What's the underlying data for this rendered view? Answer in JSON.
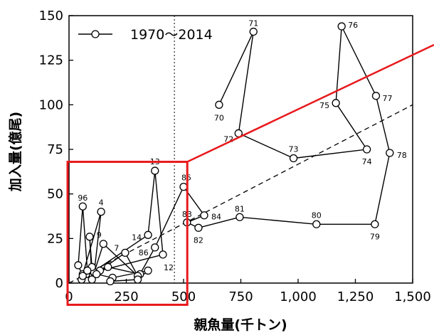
{
  "chart_data": {
    "type": "scatter",
    "xlabel": "親魚量(千トン)",
    "ylabel": "加入量(億尾)",
    "xlim": [
      0,
      1500
    ],
    "ylim": [
      0,
      150
    ],
    "x_ticks": [
      "0",
      "250",
      "500",
      "750",
      "1,000",
      "1,250",
      "1,500"
    ],
    "y_ticks": [
      "0",
      "25",
      "50",
      "75",
      "100",
      "125",
      "150"
    ],
    "x_tick_values": [
      0,
      250,
      500,
      750,
      1000,
      1250,
      1500
    ],
    "y_tick_values": [
      0,
      25,
      50,
      75,
      100,
      125,
      150
    ],
    "legend": {
      "label": "1970〜2014",
      "position": "top-left"
    },
    "series": [
      {
        "name": "1970〜2014",
        "points": [
          {
            "label": "70",
            "x": 655,
            "y": 100
          },
          {
            "label": "71",
            "x": 805,
            "y": 141
          },
          {
            "label": "72",
            "x": 740,
            "y": 84
          },
          {
            "label": "73",
            "x": 980,
            "y": 70
          },
          {
            "label": "74",
            "x": 1300,
            "y": 75
          },
          {
            "label": "75",
            "x": 1165,
            "y": 101
          },
          {
            "label": "76",
            "x": 1190,
            "y": 144
          },
          {
            "label": "77",
            "x": 1340,
            "y": 105
          },
          {
            "label": "78",
            "x": 1400,
            "y": 73
          },
          {
            "label": "79",
            "x": 1335,
            "y": 33
          },
          {
            "label": "80",
            "x": 1080,
            "y": 33
          },
          {
            "label": "81",
            "x": 745,
            "y": 37
          },
          {
            "label": "82",
            "x": 565,
            "y": 31
          },
          {
            "label": "83",
            "x": 515,
            "y": 34
          },
          {
            "label": "84",
            "x": 590,
            "y": 38
          },
          {
            "label": "85",
            "x": 500,
            "y": 54
          },
          {
            "label": "86",
            "x": 375,
            "y": 20
          },
          {
            "label": "",
            "x": 310,
            "y": 5
          },
          {
            "label": "",
            "x": 170,
            "y": 9
          },
          {
            "label": "",
            "x": 135,
            "y": 7
          },
          {
            "label": "7",
            "x": 245,
            "y": 17
          },
          {
            "label": "",
            "x": 300,
            "y": 4
          },
          {
            "label": "9",
            "x": 150,
            "y": 22
          },
          {
            "label": "",
            "x": 110,
            "y": 6
          },
          {
            "label": "4",
            "x": 140,
            "y": 40
          },
          {
            "label": "",
            "x": 60,
            "y": 5
          },
          {
            "label": "",
            "x": 100,
            "y": 9
          },
          {
            "label": "",
            "x": 90,
            "y": 26
          },
          {
            "label": "",
            "x": 100,
            "y": 2
          },
          {
            "label": "",
            "x": 75,
            "y": 5
          },
          {
            "label": "12",
            "x": 410,
            "y": 16
          },
          {
            "label": "13",
            "x": 375,
            "y": 63
          },
          {
            "label": "14",
            "x": 345,
            "y": 27
          },
          {
            "label": "",
            "x": 55,
            "y": 2
          },
          {
            "label": "",
            "x": 60,
            "y": 4
          },
          {
            "label": "",
            "x": 40,
            "y": 10
          },
          {
            "label": "96",
            "x": 60,
            "y": 43
          },
          {
            "label": "",
            "x": 80,
            "y": 7
          },
          {
            "label": "",
            "x": 120,
            "y": 5
          },
          {
            "label": "",
            "x": 190,
            "y": 3
          },
          {
            "label": "",
            "x": 345,
            "y": 7
          },
          {
            "label": "",
            "x": 300,
            "y": 2
          },
          {
            "label": "",
            "x": 180,
            "y": 1
          }
        ]
      }
    ],
    "reference_lines": [
      {
        "kind": "vertical",
        "style": "dotted",
        "x": 460
      },
      {
        "kind": "trend",
        "style": "dashed",
        "from": [
          0,
          0
        ],
        "to": [
          1500,
          100
        ]
      }
    ],
    "highlight_box": {
      "x": [
        0,
        510
      ],
      "y": [
        -5,
        68
      ],
      "color": "#e8191c"
    }
  }
}
